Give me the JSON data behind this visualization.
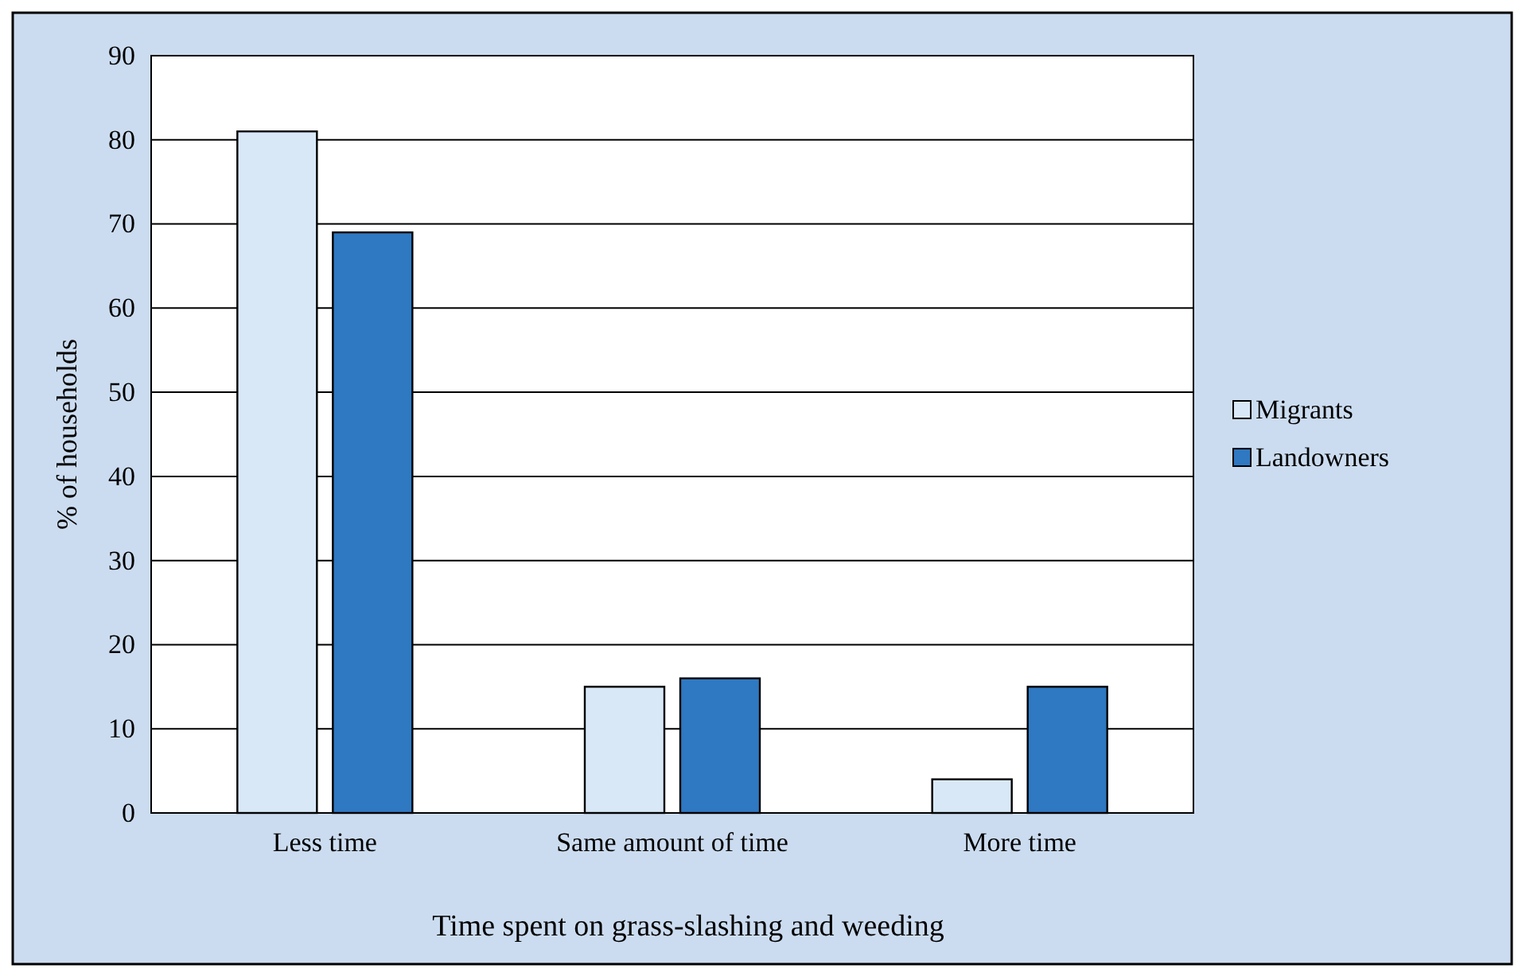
{
  "chart_data": {
    "type": "bar",
    "xlabel": "Time spent on grass-slashing and weeding",
    "ylabel": "% of households",
    "categories": [
      "Less time",
      "Same amount of time",
      "More time"
    ],
    "series": [
      {
        "name": "Migrants",
        "color": "#d9e8f7",
        "values": [
          81,
          15,
          4
        ]
      },
      {
        "name": "Landowners",
        "color": "#2f78c2",
        "values": [
          69,
          16,
          15
        ]
      }
    ],
    "ylim": [
      0,
      90
    ],
    "yticks": [
      0,
      10,
      20,
      30,
      40,
      50,
      60,
      70,
      80,
      90
    ],
    "grid": "y",
    "legend": "right"
  }
}
